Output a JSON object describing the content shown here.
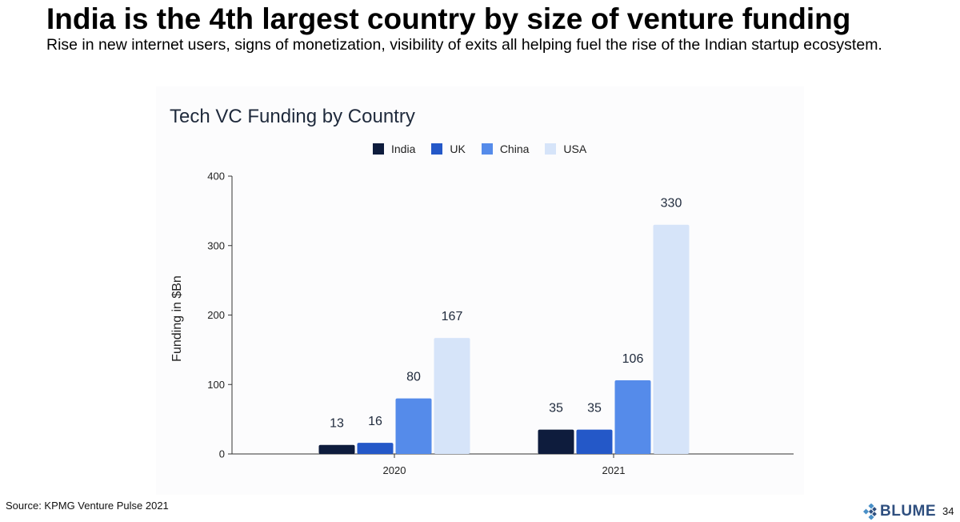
{
  "slide": {
    "title": "India is the 4th largest country by size of venture funding",
    "subtitle": "Rise in new internet users, signs of monetization, visibility of exits all helping fuel the rise of the Indian startup ecosystem.",
    "source": "Source: KPMG Venture Pulse 2021",
    "brand": "BLUME",
    "page_number": "34"
  },
  "chart_data": {
    "type": "bar",
    "title": "Tech VC Funding by Country",
    "xlabel": "",
    "ylabel": "Funding in $Bn",
    "categories": [
      "2020",
      "2021"
    ],
    "series": [
      {
        "name": "India",
        "values": [
          13,
          35
        ],
        "color": "#0e1c3d"
      },
      {
        "name": "UK",
        "values": [
          16,
          35
        ],
        "color": "#2458c8"
      },
      {
        "name": "China",
        "values": [
          80,
          106
        ],
        "color": "#558bea"
      },
      {
        "name": "USA",
        "values": [
          167,
          330
        ],
        "color": "#d6e4f9"
      }
    ],
    "ylim": [
      0,
      400
    ],
    "yticks": [
      0,
      100,
      200,
      300,
      400
    ],
    "data_labels": true,
    "grid": false,
    "legend": "top-center"
  }
}
